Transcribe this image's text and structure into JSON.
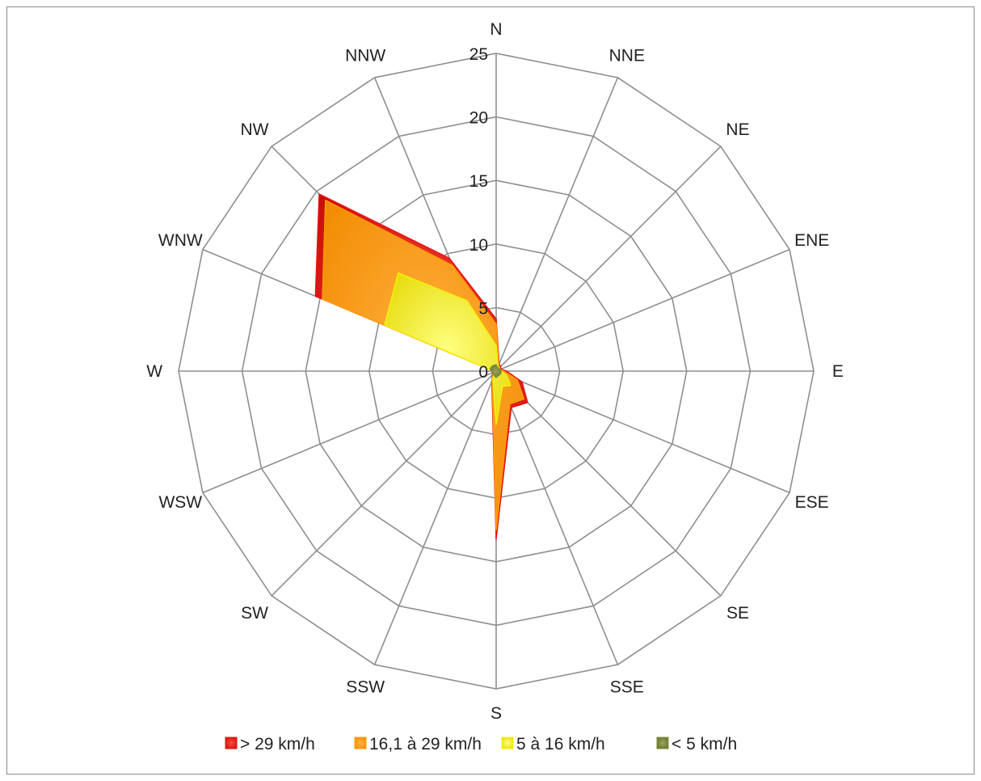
{
  "chart_data": {
    "type": "radar",
    "categories": [
      "N",
      "NNE",
      "NE",
      "ENE",
      "E",
      "ESE",
      "SE",
      "SSE",
      "S",
      "SSW",
      "SW",
      "WSW",
      "W",
      "WNW",
      "NW",
      "NNW"
    ],
    "radial_axis": {
      "min": 0,
      "max": 25,
      "ticks": [
        0,
        5,
        10,
        15,
        20,
        25
      ]
    },
    "grid": true,
    "legend_position": "bottom",
    "series": [
      {
        "name": "> 29 km/h",
        "color": "#e8140f",
        "values": [
          4.1,
          0.6,
          0.5,
          0.4,
          0.8,
          2.2,
          3.5,
          3.1,
          13.2,
          0.9,
          0.4,
          0.3,
          0.2,
          15.4,
          19.7,
          9.6
        ]
      },
      {
        "name": "16,1 à 29 km/h",
        "color": "#ff9c08",
        "values": [
          3.7,
          0.5,
          0.4,
          0.3,
          0.6,
          1.8,
          3.1,
          2.8,
          12.5,
          0.8,
          0.3,
          0.2,
          0.2,
          14.8,
          19.0,
          9.0
        ]
      },
      {
        "name": "5 à 16 km/h",
        "color": "#f3f309",
        "values": [
          2.0,
          0.4,
          0.3,
          0.3,
          0.4,
          0.9,
          1.6,
          1.3,
          4.2,
          0.7,
          0.3,
          0.2,
          0.2,
          9.5,
          10.9,
          6.0
        ]
      },
      {
        "name": "< 5 km/h",
        "color": "#7f8f3a",
        "values": [
          0.5,
          0.3,
          0.3,
          0.3,
          0.4,
          0.4,
          0.4,
          0.4,
          0.5,
          0.4,
          0.3,
          0.3,
          0.4,
          0.5,
          0.5,
          0.5
        ]
      }
    ]
  }
}
